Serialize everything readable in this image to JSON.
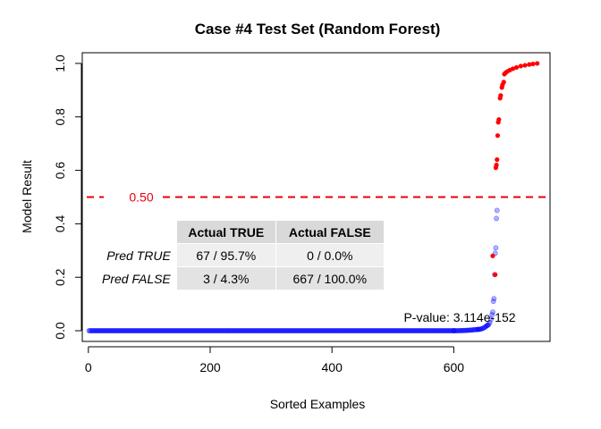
{
  "chart_data": {
    "type": "scatter",
    "title": "Case #4 Test Set (Random Forest)",
    "xlabel": "Sorted Examples",
    "ylabel": "Model Result",
    "xlim": [
      -10,
      758
    ],
    "ylim": [
      -0.04,
      1.04
    ],
    "x_ticks": [
      0,
      200,
      400,
      600
    ],
    "y_ticks": [
      0.0,
      0.2,
      0.4,
      0.6,
      0.8,
      1.0
    ],
    "x_tick_labels": [
      "0",
      "200",
      "400",
      "600"
    ],
    "y_tick_labels": [
      "0.0",
      "0.2",
      "0.4",
      "0.6",
      "0.8",
      "1.0"
    ],
    "threshold": {
      "value": 0.5,
      "label": "0.50",
      "color": "#e8000b"
    },
    "series": [
      {
        "color": "#0000ff",
        "total_points": 667,
        "segments": [
          {
            "x_start": 1,
            "x_end": 600,
            "y_start": 0.0,
            "y_end": 0.0
          },
          {
            "x_start": 600,
            "x_end": 640,
            "y_start": 0.0,
            "y_end": 0.005
          },
          {
            "x_start": 640,
            "x_end": 655,
            "y_start": 0.005,
            "y_end": 0.02
          },
          {
            "x_start": 655,
            "x_end": 663,
            "y_start": 0.02,
            "y_end": 0.06
          }
        ],
        "points": [
          {
            "x": 664,
            "y": 0.07
          },
          {
            "x": 665,
            "y": 0.11
          },
          {
            "x": 666,
            "y": 0.12
          },
          {
            "x": 667,
            "y": 0.21
          },
          {
            "x": 668,
            "y": 0.29
          },
          {
            "x": 669,
            "y": 0.31
          },
          {
            "x": 670,
            "y": 0.42
          },
          {
            "x": 671,
            "y": 0.45
          }
        ]
      },
      {
        "color": "#ff0000",
        "points": [
          {
            "x": 664,
            "y": 0.28
          },
          {
            "x": 668,
            "y": 0.21
          },
          {
            "x": 669,
            "y": 0.61
          },
          {
            "x": 670,
            "y": 0.62
          },
          {
            "x": 671,
            "y": 0.64
          },
          {
            "x": 672,
            "y": 0.73
          },
          {
            "x": 673,
            "y": 0.78
          },
          {
            "x": 674,
            "y": 0.79
          },
          {
            "x": 676,
            "y": 0.87
          },
          {
            "x": 677,
            "y": 0.88
          },
          {
            "x": 679,
            "y": 0.91
          },
          {
            "x": 680,
            "y": 0.92
          },
          {
            "x": 682,
            "y": 0.93
          },
          {
            "x": 683,
            "y": 0.96
          },
          {
            "x": 685,
            "y": 0.965
          },
          {
            "x": 688,
            "y": 0.97
          },
          {
            "x": 692,
            "y": 0.975
          },
          {
            "x": 697,
            "y": 0.98
          },
          {
            "x": 703,
            "y": 0.985
          },
          {
            "x": 710,
            "y": 0.99
          },
          {
            "x": 717,
            "y": 0.993
          },
          {
            "x": 724,
            "y": 0.996
          },
          {
            "x": 730,
            "y": 0.998
          },
          {
            "x": 737,
            "y": 1.0
          }
        ]
      }
    ],
    "pvalue_text": "P-value: 3.114e-152",
    "confusion_table": {
      "headers": [
        "Actual TRUE",
        "Actual FALSE"
      ],
      "rows": [
        {
          "label": "Pred TRUE",
          "values": [
            "67 / 95.7%",
            "0 / 0.0%"
          ]
        },
        {
          "label": "Pred FALSE",
          "values": [
            "3 / 4.3%",
            "667 / 100.0%"
          ]
        }
      ]
    }
  }
}
